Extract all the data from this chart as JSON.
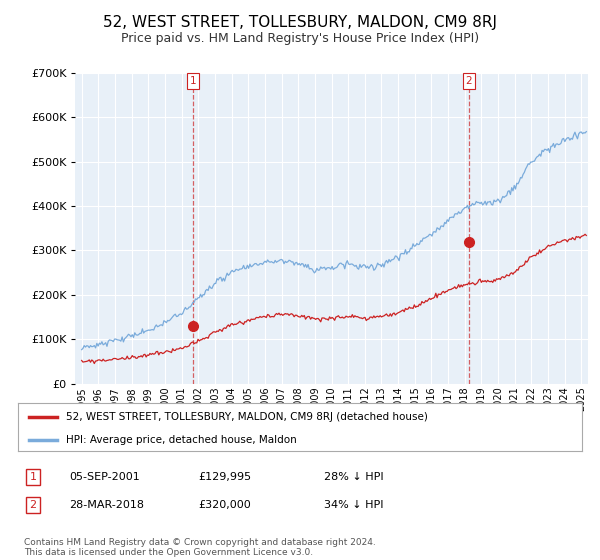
{
  "title": "52, WEST STREET, TOLLESBURY, MALDON, CM9 8RJ",
  "subtitle": "Price paid vs. HM Land Registry's House Price Index (HPI)",
  "title_fontsize": 11,
  "subtitle_fontsize": 9,
  "bg_color": "#ffffff",
  "plot_bg_color": "#e8f0f8",
  "grid_color": "#ffffff",
  "hpi_color": "#7aabdb",
  "price_color": "#cc2222",
  "purchase1_year": 2001.67,
  "purchase1_price": 129995,
  "purchase2_year": 2018.24,
  "purchase2_price": 320000,
  "legend1": "52, WEST STREET, TOLLESBURY, MALDON, CM9 8RJ (detached house)",
  "legend2": "HPI: Average price, detached house, Maldon",
  "table_row1": [
    "1",
    "05-SEP-2001",
    "£129,995",
    "28% ↓ HPI"
  ],
  "table_row2": [
    "2",
    "28-MAR-2018",
    "£320,000",
    "34% ↓ HPI"
  ],
  "footer": "Contains HM Land Registry data © Crown copyright and database right 2024.\nThis data is licensed under the Open Government Licence v3.0.",
  "ylim": [
    0,
    700000
  ],
  "yticks": [
    0,
    100000,
    200000,
    300000,
    400000,
    500000,
    600000,
    700000
  ],
  "xlim_left": 1994.6,
  "xlim_right": 2025.4
}
